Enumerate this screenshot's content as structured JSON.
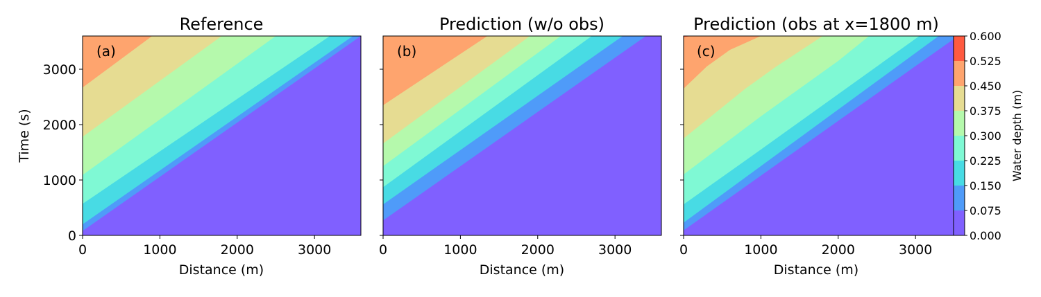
{
  "figure": {
    "colorbar": {
      "label": "Water depth (m)",
      "levels": [
        0.0,
        0.075,
        0.15,
        0.225,
        0.3,
        0.375,
        0.45,
        0.525,
        0.6
      ],
      "tick_labels": [
        "0.000",
        "0.075",
        "0.150",
        "0.225",
        "0.300",
        "0.375",
        "0.450",
        "0.525",
        "0.600"
      ],
      "colors": [
        "#8060ff",
        "#4f9bf9",
        "#48dbe4",
        "#7ff9d4",
        "#b5f9ac",
        "#e6dc92",
        "#fea46e",
        "#ff5a40"
      ]
    }
  },
  "chart_data": [
    {
      "type": "contourf",
      "title": "Reference",
      "panel_label": "(a)",
      "xlabel": "Distance (m)",
      "ylabel": "Time (s)",
      "xlim": [
        0,
        3600
      ],
      "ylim": [
        0,
        3600
      ],
      "xticks": [
        "0",
        "1000",
        "2000",
        "3000"
      ],
      "yticks": [
        "0",
        "1000",
        "2000",
        "3000"
      ],
      "contour_lines": [
        {
          "level": 0.075,
          "x": [
            0,
            3600
          ],
          "t": [
            80,
            3600
          ]
        },
        {
          "level": 0.15,
          "x": [
            0,
            3600
          ],
          "t": [
            200,
            3700
          ]
        },
        {
          "level": 0.225,
          "x": [
            0,
            3200
          ],
          "t": [
            570,
            3600
          ]
        },
        {
          "level": 0.3,
          "x": [
            0,
            2500
          ],
          "t": [
            1090,
            3600
          ]
        },
        {
          "level": 0.375,
          "x": [
            0,
            1800
          ],
          "t": [
            1780,
            3600
          ]
        },
        {
          "level": 0.45,
          "x": [
            0,
            900
          ],
          "t": [
            2670,
            3600
          ]
        }
      ]
    },
    {
      "type": "contourf",
      "title": "Prediction (w/o obs)",
      "panel_label": "(b)",
      "xlabel": "Distance (m)",
      "ylabel": "",
      "xlim": [
        0,
        3600
      ],
      "ylim": [
        0,
        3600
      ],
      "xticks": [
        "0",
        "1000",
        "2000",
        "3000"
      ],
      "yticks": [],
      "contour_lines": [
        {
          "level": 0.075,
          "x": [
            0,
            3400
          ],
          "t": [
            270,
            3600
          ]
        },
        {
          "level": 0.15,
          "x": [
            0,
            3100
          ],
          "t": [
            560,
            3600
          ]
        },
        {
          "level": 0.225,
          "x": [
            0,
            2700
          ],
          "t": [
            870,
            3600
          ]
        },
        {
          "level": 0.3,
          "x": [
            0,
            2300
          ],
          "t": [
            1250,
            3600
          ]
        },
        {
          "level": 0.375,
          "x": [
            0,
            1900
          ],
          "t": [
            1660,
            3600
          ]
        },
        {
          "level": 0.45,
          "x": [
            0,
            1350
          ],
          "t": [
            2350,
            3600
          ]
        }
      ]
    },
    {
      "type": "contourf",
      "title": "Prediction (obs at x=1800 m)",
      "panel_label": "(c)",
      "xlabel": "Distance (m)",
      "ylabel": "",
      "xlim": [
        0,
        3600
      ],
      "ylim": [
        0,
        3600
      ],
      "xticks": [
        "0",
        "1000",
        "2000",
        "3000"
      ],
      "yticks": [],
      "contour_lines": [
        {
          "level": 0.075,
          "x": [
            0,
            3550
          ],
          "t": [
            90,
            3600
          ]
        },
        {
          "level": 0.15,
          "x": [
            0,
            3300
          ],
          "t": [
            230,
            3600
          ]
        },
        {
          "level": 0.225,
          "x": [
            0,
            1000,
            2000,
            3050
          ],
          "t": [
            560,
            1550,
            2550,
            3600
          ]
        },
        {
          "level": 0.3,
          "x": [
            0,
            1000,
            2000,
            2400
          ],
          "t": [
            1100,
            2150,
            3150,
            3600
          ]
        },
        {
          "level": 0.375,
          "x": [
            0,
            800,
            1200,
            1800
          ],
          "t": [
            1750,
            2650,
            3050,
            3600
          ]
        },
        {
          "level": 0.45,
          "x": [
            0,
            300,
            600,
            1000
          ],
          "t": [
            2650,
            3050,
            3350,
            3600
          ]
        },
        {
          "level": 0.525,
          "x": [
            0,
            100
          ],
          "t": [
            3580,
            3600
          ]
        }
      ]
    }
  ]
}
